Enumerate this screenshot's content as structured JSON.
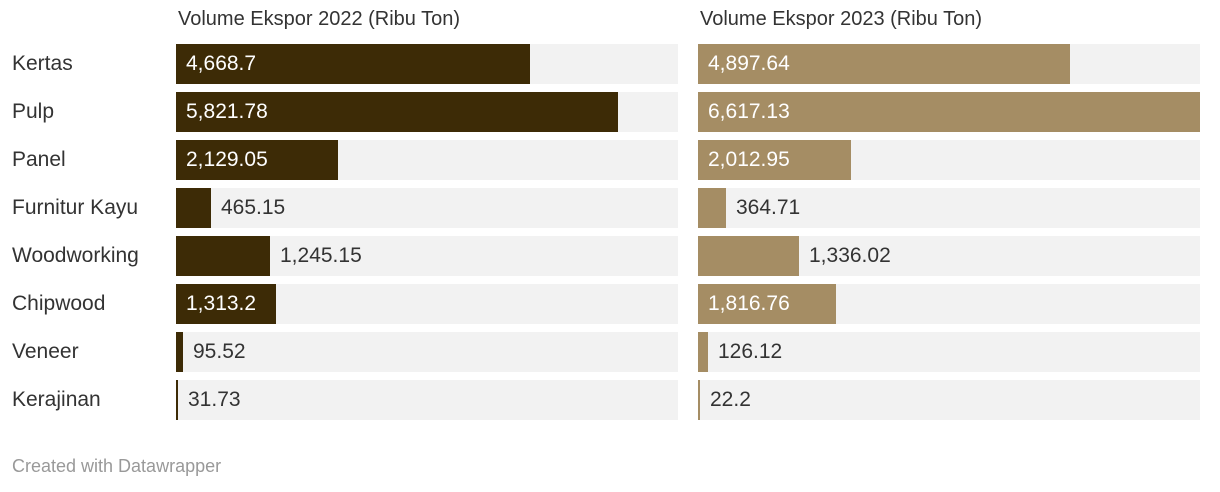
{
  "chart_data": {
    "type": "bar",
    "orientation": "horizontal",
    "categories": [
      "Kertas",
      "Pulp",
      "Panel",
      "Furnitur Kayu",
      "Woodworking",
      "Chipwood",
      "Veneer",
      "Kerajinan"
    ],
    "panels": [
      {
        "title": "Volume Ekspor 2022 (Ribu Ton)",
        "color": "#3d2b06",
        "values": [
          4668.7,
          5821.78,
          2129.05,
          465.15,
          1245.15,
          1313.2,
          95.52,
          31.73
        ],
        "labels": [
          "4,668.7",
          "5,821.78",
          "2,129.05",
          "465.15",
          "1,245.15",
          "1,313.2",
          "95.52",
          "31.73"
        ]
      },
      {
        "title": "Volume Ekspor 2023 (Ribu Ton)",
        "color": "#a58d64",
        "values": [
          4897.64,
          6617.13,
          2012.95,
          364.71,
          1336.02,
          1816.76,
          126.12,
          22.2
        ],
        "labels": [
          "4,897.64",
          "6,617.13",
          "2,012.95",
          "364.71",
          "1,336.02",
          "1,816.76",
          "126.12",
          "22.2"
        ]
      }
    ],
    "xlim": [
      0,
      6617.13
    ],
    "track_color": "#f2f2f2"
  },
  "footer": "Created with Datawrapper"
}
